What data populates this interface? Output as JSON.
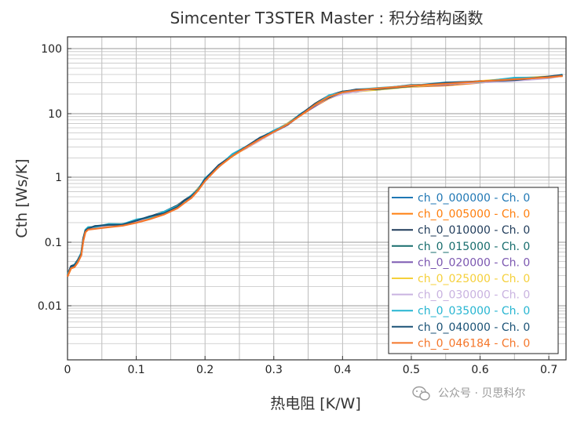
{
  "chart_data": {
    "type": "line",
    "title": "Simcenter T3STER Master : 积分结构函数",
    "xlabel": "热电阻 [K/W]",
    "ylabel": "Cth [Ws/K]",
    "xlim": [
      0,
      0.725
    ],
    "ylim": [
      0.001,
      150
    ],
    "yscale": "log",
    "grid": true,
    "legend_position": "bottom-right",
    "x_ticks": [
      "0",
      "0.1",
      "0.2",
      "0.3",
      "0.4",
      "0.5",
      "0.6",
      "0.7"
    ],
    "x_tick_values": [
      0,
      0.1,
      0.2,
      0.3,
      0.4,
      0.5,
      0.6,
      0.7
    ],
    "y_ticks": [
      "0.01",
      "0.1",
      "1",
      "10",
      "100"
    ],
    "y_tick_values": [
      0.01,
      0.1,
      1,
      10,
      100
    ],
    "series_shape": {
      "x": [
        0.0,
        0.005,
        0.01,
        0.015,
        0.02,
        0.023,
        0.026,
        0.03,
        0.04,
        0.06,
        0.08,
        0.1,
        0.12,
        0.14,
        0.16,
        0.17,
        0.18,
        0.19,
        0.2,
        0.22,
        0.24,
        0.26,
        0.28,
        0.3,
        0.32,
        0.34,
        0.36,
        0.38,
        0.4,
        0.42,
        0.45,
        0.5,
        0.55,
        0.6,
        0.65,
        0.7,
        0.72
      ],
      "y": [
        0.03,
        0.04,
        0.042,
        0.05,
        0.065,
        0.11,
        0.15,
        0.165,
        0.17,
        0.18,
        0.19,
        0.21,
        0.24,
        0.28,
        0.35,
        0.42,
        0.5,
        0.65,
        0.9,
        1.5,
        2.2,
        3.0,
        4.0,
        5.2,
        6.8,
        9.5,
        13.5,
        18.0,
        21.0,
        22.5,
        24.0,
        26.5,
        28.5,
        31.0,
        33.5,
        36.0,
        38.0
      ]
    },
    "series": [
      {
        "name": "ch_0_000000 - Ch. 0",
        "color": "#1f77b4",
        "scale": 1.0
      },
      {
        "name": "ch_0_005000 - Ch. 0",
        "color": "#ff7f0e",
        "scale": 0.985
      },
      {
        "name": "ch_0_010000 - Ch. 0",
        "color": "#1f3b5a",
        "scale": 1.02
      },
      {
        "name": "ch_0_015000 - Ch. 0",
        "color": "#176d6d",
        "scale": 1.01
      },
      {
        "name": "ch_0_020000 - Ch. 0",
        "color": "#7b57b0",
        "scale": 0.995
      },
      {
        "name": "ch_0_025000 - Ch. 0",
        "color": "#f5d03b",
        "scale": 1.005
      },
      {
        "name": "ch_0_030000 - Ch. 0",
        "color": "#c9b3e0",
        "scale": 0.99
      },
      {
        "name": "ch_0_035000 - Ch. 0",
        "color": "#26b5d1",
        "scale": 1.03
      },
      {
        "name": "ch_0_040000 - Ch. 0",
        "color": "#1a5276",
        "scale": 1.015
      },
      {
        "name": "ch_0_046184 - Ch. 0",
        "color": "#f4762a",
        "scale": 0.98
      }
    ]
  },
  "watermark": {
    "icon": "wechat-icon",
    "text": "公众号 · 贝思科尔"
  }
}
